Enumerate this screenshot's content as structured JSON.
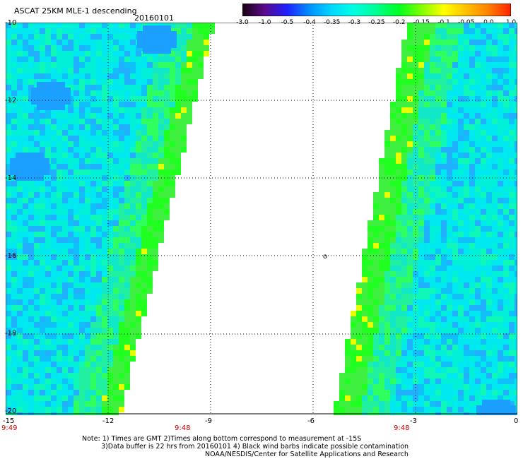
{
  "header": {
    "title": "ASCAT 25KM MLE-1 descending",
    "date": "20160101"
  },
  "colorbar": {
    "labels": [
      "-3.0",
      "-1.0",
      "-0.5",
      "-0.4",
      "-0.35",
      "-0.3",
      "-0.25",
      "-0.2",
      "-0.15",
      "-0.1",
      "-0.05",
      "0.0",
      "1.0"
    ],
    "colors": [
      "#1a0010",
      "#5a0a8c",
      "#2020ff",
      "#0090ff",
      "#00d8ff",
      "#00ffe0",
      "#00ff90",
      "#00ff20",
      "#80ff00",
      "#ffff00",
      "#ffc000",
      "#ff8000",
      "#ff2000"
    ]
  },
  "map": {
    "x_axis": {
      "ticks": [
        "-15",
        "-12",
        "-9",
        "-6",
        "-3",
        "0"
      ],
      "values": [
        -15,
        -12,
        -9,
        -6,
        -3,
        0
      ]
    },
    "y_axis": {
      "ticks": [
        "-10",
        "-12",
        "-14",
        "-16",
        "-18",
        "-20"
      ],
      "values": [
        -10,
        -12,
        -14,
        -16,
        -18,
        -20
      ]
    },
    "times": [
      "9:49",
      "9:48",
      "9:48"
    ],
    "island_label": "o"
  },
  "notes": {
    "line1": "Note: 1) Times are GMT 2)Times along bottom correspond to measurement at -15S",
    "line2": "3)Data buffer is 22 hrs from 20160101 4) Black wind barbs indicate possible contamination",
    "line3": "NOAA/NESDIS/Center for Satellite Applications and Research"
  }
}
